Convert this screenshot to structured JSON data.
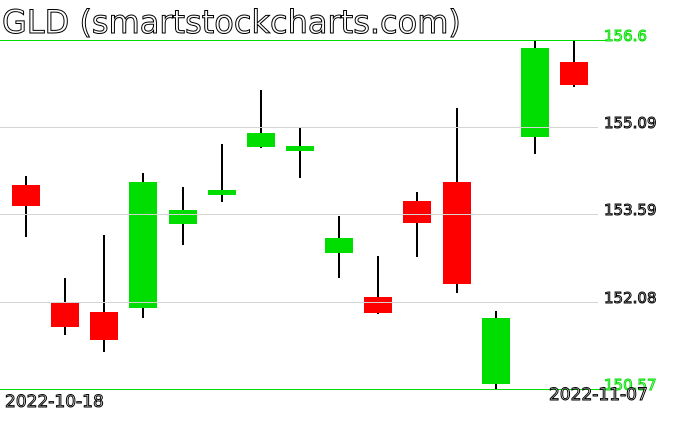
{
  "colors": {
    "up": "#00DD00",
    "down": "#FF0000",
    "grid": "#D4D4D4",
    "range_line": "#00DD00",
    "text": "#000000",
    "background": "#FFFFFF"
  },
  "chart_data": {
    "type": "candlestick",
    "symbol": "GLD",
    "title": "GLD (smartstockcharts.com)",
    "grid": true,
    "legend": "none",
    "x_axis": {
      "first_label": "2022-10-18",
      "last_label": "2022-11-07"
    },
    "y_axis": {
      "side": "right",
      "range_high": 156.6,
      "range_low": 150.57,
      "labels": [
        {
          "text": "156.6",
          "price": 156.6,
          "color": "#00DD00",
          "line": "#00DD00"
        },
        {
          "text": "155.09",
          "price": 155.09,
          "color": "#000000",
          "line": "#D4D4D4"
        },
        {
          "text": "153.59",
          "price": 153.59,
          "color": "#000000",
          "line": "#D4D4D4"
        },
        {
          "text": "152.08",
          "price": 152.08,
          "color": "#000000",
          "line": "#D4D4D4"
        },
        {
          "text": "150.57",
          "price": 150.57,
          "color": "#00DD00",
          "line": "#00DD00"
        }
      ]
    },
    "candles": [
      {
        "date": "2022-10-18",
        "open": 154.1,
        "high": 154.25,
        "low": 153.2,
        "close": 153.73
      },
      {
        "date": "2022-10-19",
        "open": 152.06,
        "high": 152.49,
        "low": 151.5,
        "close": 151.64
      },
      {
        "date": "2022-10-20",
        "open": 151.9,
        "high": 153.23,
        "low": 151.21,
        "close": 151.42
      },
      {
        "date": "2022-10-21",
        "open": 151.97,
        "high": 154.3,
        "low": 151.8,
        "close": 154.15
      },
      {
        "date": "2022-10-24",
        "open": 153.42,
        "high": 154.06,
        "low": 153.06,
        "close": 153.66
      },
      {
        "date": "2022-10-25",
        "open": 153.92,
        "high": 154.8,
        "low": 153.8,
        "close": 154.01
      },
      {
        "date": "2022-10-26",
        "open": 154.75,
        "high": 155.74,
        "low": 154.73,
        "close": 154.99
      },
      {
        "date": "2022-10-27",
        "open": 154.68,
        "high": 155.08,
        "low": 154.22,
        "close": 154.76
      },
      {
        "date": "2022-10-28",
        "open": 152.92,
        "high": 153.56,
        "low": 152.49,
        "close": 153.18
      },
      {
        "date": "2022-10-31",
        "open": 152.16,
        "high": 152.87,
        "low": 151.87,
        "close": 151.89
      },
      {
        "date": "2022-11-01",
        "open": 153.82,
        "high": 153.97,
        "low": 152.85,
        "close": 153.44
      },
      {
        "date": "2022-11-02",
        "open": 154.15,
        "high": 155.43,
        "low": 152.23,
        "close": 152.39
      },
      {
        "date": "2022-11-03",
        "open": 150.66,
        "high": 151.92,
        "low": 150.57,
        "close": 151.8
      },
      {
        "date": "2022-11-04",
        "open": 154.92,
        "high": 156.6,
        "low": 154.63,
        "close": 156.46
      },
      {
        "date": "2022-11-07",
        "open": 156.22,
        "high": 156.58,
        "low": 155.79,
        "close": 155.82
      }
    ]
  }
}
